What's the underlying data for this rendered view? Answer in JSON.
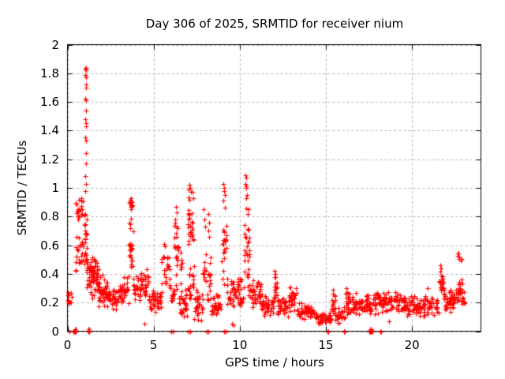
{
  "page": {
    "title": "Day 306 of 2025, SRMTID for receiver nium"
  },
  "chart_data": {
    "type": "scatter",
    "title": "Day 306 of 2025, SRMTID for receiver nium",
    "xlabel": "GPS time / hours",
    "ylabel": "SRMTID / TECUs",
    "xlim": [
      0,
      24
    ],
    "ylim": [
      0,
      2
    ],
    "xtick_values": [
      0,
      5,
      10,
      15,
      20
    ],
    "xtick_labels": [
      "0",
      "5",
      "10",
      "15",
      "20"
    ],
    "ytick_values": [
      0,
      0.2,
      0.4,
      0.6,
      0.8,
      1,
      1.2,
      1.4,
      1.6,
      1.8,
      2
    ],
    "ytick_labels": [
      "0",
      "0.2",
      "0.4",
      "0.6",
      "0.8",
      "1",
      "1.2",
      "1.4",
      "1.6",
      "1.8",
      "2"
    ],
    "grid": true,
    "legend_position": "none",
    "marker": "plus",
    "marker_color": "#ff0000",
    "grid_color": "#b0b0b0",
    "axis_color": "#000000",
    "seed": 306,
    "series": [
      {
        "name": "SRMTID",
        "points_note": "distinct readable points [x hours, y TECUs]",
        "points": [
          [
            1.04,
            1.83
          ],
          [
            1.07,
            1.84
          ],
          [
            1.06,
            1.82
          ],
          [
            1.05,
            1.79
          ],
          [
            1.08,
            1.77
          ],
          [
            1.06,
            1.72
          ],
          [
            1.07,
            1.7
          ],
          [
            1.05,
            1.62
          ],
          [
            1.06,
            1.61
          ],
          [
            1.07,
            1.54
          ],
          [
            1.05,
            1.48
          ],
          [
            1.06,
            1.45
          ],
          [
            1.08,
            1.43
          ],
          [
            1.05,
            1.35
          ],
          [
            1.07,
            1.33
          ],
          [
            1.06,
            1.24
          ],
          [
            1.06,
            1.17
          ],
          [
            1.05,
            1.08
          ],
          [
            1.07,
            1.03
          ],
          [
            1.04,
            0.98
          ],
          [
            3.62,
            0.9
          ],
          [
            3.65,
            0.92
          ],
          [
            3.7,
            0.93
          ],
          [
            3.74,
            0.9
          ],
          [
            3.67,
            0.87
          ],
          [
            6.3,
            0.87
          ],
          [
            6.34,
            0.83
          ],
          [
            7.08,
            1.02
          ],
          [
            7.12,
            1.0
          ],
          [
            7.05,
            0.99
          ],
          [
            7.16,
            0.97
          ],
          [
            7.28,
            0.97
          ],
          [
            7.3,
            0.93
          ],
          [
            7.9,
            0.85
          ],
          [
            7.94,
            0.78
          ],
          [
            7.97,
            0.73
          ],
          [
            8.17,
            0.82
          ],
          [
            8.21,
            0.76
          ],
          [
            8.19,
            0.7
          ],
          [
            8.23,
            0.66
          ],
          [
            9.04,
            1.03
          ],
          [
            9.07,
            1.0
          ],
          [
            9.1,
            0.98
          ],
          [
            9.12,
            0.95
          ],
          [
            9.06,
            0.91
          ],
          [
            9.14,
            0.86
          ],
          [
            10.34,
            1.09
          ],
          [
            10.37,
            1.07
          ],
          [
            10.35,
            1.03
          ],
          [
            10.39,
            1.01
          ],
          [
            10.36,
            1.0
          ],
          [
            10.41,
            0.95
          ],
          [
            10.38,
            0.93
          ],
          [
            12.02,
            0.42
          ],
          [
            12.05,
            0.4
          ],
          [
            15.4,
            0.29
          ],
          [
            15.43,
            0.26
          ],
          [
            16.2,
            0.3
          ],
          [
            16.24,
            0.27
          ],
          [
            18.67,
            0.07
          ],
          [
            20.9,
            0.3
          ],
          [
            21.64,
            0.46
          ],
          [
            21.69,
            0.44
          ],
          [
            4.45,
            0.05
          ],
          [
            9.55,
            0.05
          ],
          [
            9.65,
            0.04
          ],
          [
            0.0,
            0.27
          ],
          [
            0.0,
            0.22
          ],
          [
            0.02,
            0.25
          ],
          [
            0.1,
            0.0
          ],
          [
            0.36,
            0.0
          ],
          [
            0.4,
            0.0
          ],
          [
            0.44,
            0.0
          ],
          [
            0.48,
            0.0
          ],
          [
            0.42,
            0.012
          ],
          [
            0.46,
            0.012
          ],
          [
            1.2,
            0.0
          ],
          [
            1.24,
            0.0
          ],
          [
            1.28,
            0.0
          ],
          [
            1.22,
            0.012
          ],
          [
            1.26,
            0.012
          ],
          [
            6.02,
            0.0
          ],
          [
            6.1,
            0.0
          ],
          [
            7.03,
            0.0
          ],
          [
            7.11,
            0.0
          ],
          [
            8.08,
            0.0
          ],
          [
            8.16,
            0.0
          ],
          [
            9.1,
            0.0
          ],
          [
            9.18,
            0.0
          ],
          [
            15.08,
            0.0
          ],
          [
            15.16,
            0.0
          ],
          [
            16.04,
            0.0
          ],
          [
            16.12,
            0.0
          ],
          [
            17.52,
            0.0
          ],
          [
            17.57,
            0.0
          ],
          [
            17.62,
            0.0
          ],
          [
            17.67,
            0.0
          ],
          [
            17.72,
            0.0
          ],
          [
            17.55,
            0.012
          ],
          [
            17.65,
            0.012
          ],
          [
            18.14,
            0.0
          ],
          [
            18.22,
            0.0
          ]
        ],
        "noise_bands_note": "dense scatter summarized as [x_start, x_end, y_min, y_max, n_points]",
        "noise_bands": [
          [
            0.0,
            0.3,
            0.18,
            0.3,
            8
          ],
          [
            0.45,
            0.68,
            0.36,
            0.75,
            12
          ],
          [
            0.5,
            0.66,
            0.76,
            0.93,
            12
          ],
          [
            0.7,
            0.92,
            0.42,
            0.78,
            12
          ],
          [
            0.72,
            0.9,
            0.8,
            0.95,
            8
          ],
          [
            0.98,
            1.14,
            0.3,
            1.0,
            26
          ],
          [
            1.1,
            1.45,
            0.26,
            0.52,
            22
          ],
          [
            1.35,
            1.85,
            0.22,
            0.54,
            50
          ],
          [
            1.8,
            2.35,
            0.16,
            0.4,
            42
          ],
          [
            2.35,
            3.0,
            0.14,
            0.32,
            40
          ],
          [
            3.0,
            3.55,
            0.15,
            0.4,
            32
          ],
          [
            3.56,
            3.82,
            0.3,
            0.88,
            26
          ],
          [
            3.58,
            3.78,
            0.84,
            0.93,
            8
          ],
          [
            3.82,
            4.25,
            0.2,
            0.42,
            26
          ],
          [
            4.25,
            4.7,
            0.22,
            0.46,
            30
          ],
          [
            4.7,
            5.45,
            0.13,
            0.3,
            42
          ],
          [
            5.45,
            5.95,
            0.24,
            0.62,
            26
          ],
          [
            5.95,
            6.2,
            0.15,
            0.35,
            14
          ],
          [
            6.2,
            6.45,
            0.25,
            0.85,
            24
          ],
          [
            6.45,
            6.95,
            0.08,
            0.3,
            30
          ],
          [
            6.55,
            6.66,
            0.3,
            0.6,
            8
          ],
          [
            6.98,
            7.32,
            0.5,
            0.95,
            26
          ],
          [
            6.95,
            7.35,
            0.18,
            0.5,
            18
          ],
          [
            7.35,
            7.85,
            0.05,
            0.3,
            32
          ],
          [
            7.86,
            8.04,
            0.15,
            0.7,
            12
          ],
          [
            8.06,
            8.34,
            0.12,
            0.62,
            16
          ],
          [
            8.34,
            8.95,
            0.1,
            0.26,
            32
          ],
          [
            8.96,
            9.24,
            0.28,
            0.92,
            22
          ],
          [
            9.25,
            10.25,
            0.15,
            0.4,
            58
          ],
          [
            10.26,
            10.55,
            0.24,
            0.95,
            30
          ],
          [
            10.55,
            11.3,
            0.14,
            0.36,
            46
          ],
          [
            11.3,
            11.95,
            0.09,
            0.26,
            42
          ],
          [
            11.96,
            12.18,
            0.16,
            0.4,
            18
          ],
          [
            12.2,
            12.85,
            0.09,
            0.24,
            36
          ],
          [
            12.85,
            13.35,
            0.12,
            0.32,
            30
          ],
          [
            13.35,
            14.35,
            0.08,
            0.2,
            52
          ],
          [
            14.35,
            15.3,
            0.04,
            0.14,
            48
          ],
          [
            15.3,
            15.55,
            0.08,
            0.28,
            14
          ],
          [
            15.55,
            16.1,
            0.05,
            0.18,
            28
          ],
          [
            16.1,
            16.55,
            0.1,
            0.3,
            26
          ],
          [
            16.55,
            17.55,
            0.1,
            0.27,
            55
          ],
          [
            17.55,
            18.35,
            0.1,
            0.3,
            45
          ],
          [
            18.35,
            19.45,
            0.12,
            0.3,
            55
          ],
          [
            19.45,
            21.55,
            0.1,
            0.26,
            105
          ],
          [
            21.57,
            21.85,
            0.24,
            0.45,
            20
          ],
          [
            21.85,
            22.55,
            0.13,
            0.3,
            42
          ],
          [
            22.55,
            22.95,
            0.17,
            0.37,
            26
          ],
          [
            22.6,
            22.9,
            0.48,
            0.56,
            7
          ],
          [
            22.95,
            23.05,
            0.17,
            0.28,
            6
          ]
        ]
      }
    ]
  }
}
